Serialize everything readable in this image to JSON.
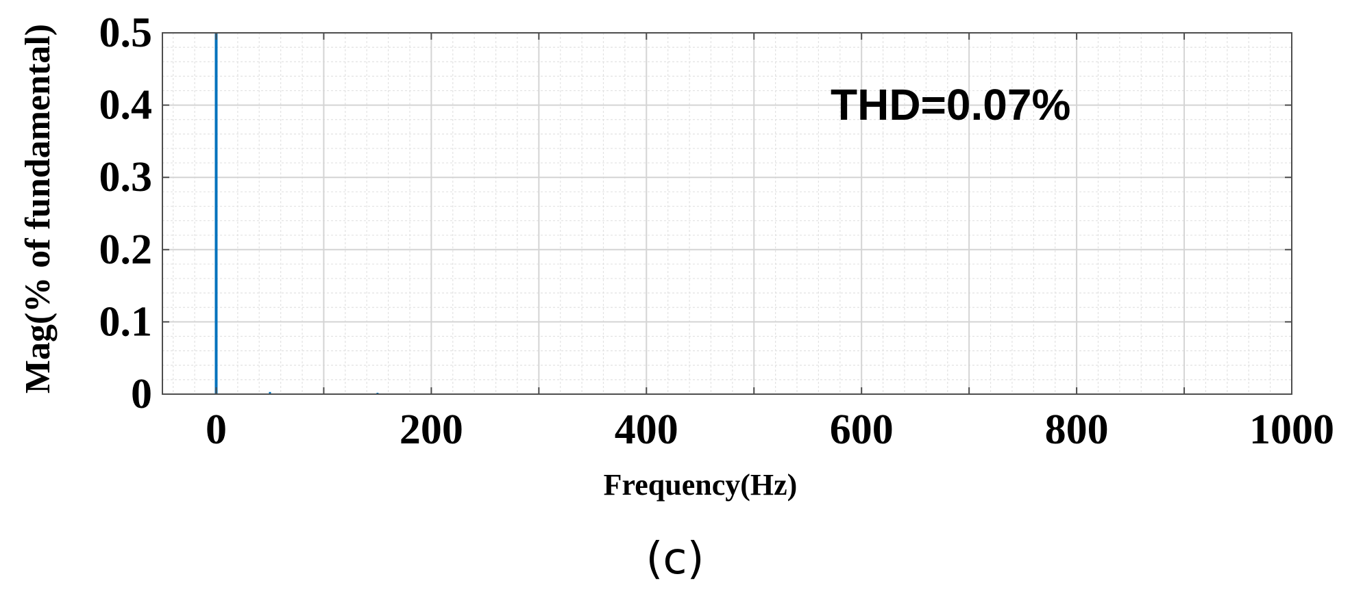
{
  "chart_data": {
    "type": "bar",
    "xlabel": "Frequency(Hz)",
    "ylabel": "Mag(% of fundamental)",
    "xlim": [
      -50,
      1000
    ],
    "ylim": [
      0,
      0.5
    ],
    "x_ticks": [
      "0",
      "200",
      "400",
      "600",
      "800",
      "1000"
    ],
    "x_tick_values": [
      0,
      200,
      400,
      600,
      800,
      1000
    ],
    "y_ticks": [
      "0",
      "0.1",
      "0.2",
      "0.3",
      "0.4",
      "0.5"
    ],
    "y_tick_values": [
      0,
      0.1,
      0.2,
      0.3,
      0.4,
      0.5
    ],
    "grid": true,
    "minor_grid": true,
    "bar_color": "#0072BD",
    "x": [
      0,
      50,
      150
    ],
    "values": [
      0.5,
      0.003,
      0.001
    ],
    "annotation": "THD=0.07%",
    "panel_label": "(c)"
  }
}
